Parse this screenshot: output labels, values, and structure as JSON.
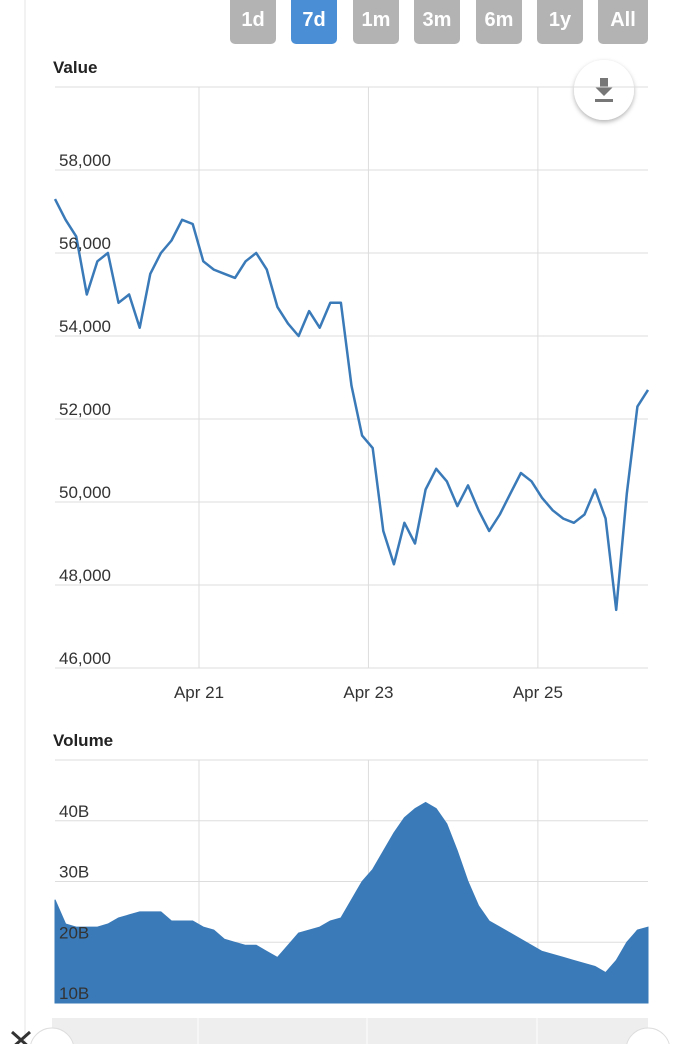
{
  "range_buttons": [
    "1d",
    "7d",
    "1m",
    "3m",
    "6m",
    "1y",
    "All"
  ],
  "selected_range": "7d",
  "chart_data": [
    {
      "type": "line",
      "title": "Value",
      "color": "#3a7ab8",
      "grid": true,
      "x": [
        19.3,
        19.425,
        19.55,
        19.675,
        19.8,
        19.925,
        20.05,
        20.175,
        20.3,
        20.425,
        20.55,
        20.675,
        20.8,
        20.925,
        21.05,
        21.175,
        21.3,
        21.425,
        21.55,
        21.675,
        21.8,
        21.925,
        22.05,
        22.175,
        22.3,
        22.425,
        22.55,
        22.675,
        22.8,
        22.925,
        23.05,
        23.175,
        23.3,
        23.425,
        23.55,
        23.675,
        23.8,
        23.925,
        24.05,
        24.175,
        24.3,
        24.425,
        24.55,
        24.675,
        24.8,
        24.925,
        25.05,
        25.175,
        25.3,
        25.425,
        25.55,
        25.675,
        25.8,
        25.925,
        26.05,
        26.175,
        26.3
      ],
      "values": [
        57300,
        56800,
        56400,
        55000,
        55800,
        56000,
        54800,
        55000,
        54200,
        55500,
        56000,
        56300,
        56800,
        56700,
        55800,
        55600,
        55500,
        55400,
        55800,
        56000,
        55600,
        54700,
        54300,
        54000,
        54600,
        54200,
        54800,
        54800,
        52800,
        51600,
        51300,
        49300,
        48500,
        49500,
        49000,
        50300,
        50800,
        50500,
        49900,
        50400,
        49800,
        49300,
        49700,
        50200,
        50700,
        50500,
        50100,
        49800,
        49600,
        49500,
        49700,
        50300,
        49600,
        47400,
        50200,
        52300,
        52700
      ],
      "xlim": [
        19.3,
        26.3
      ],
      "xticks": [
        {
          "value": 21,
          "label": "Apr 21"
        },
        {
          "value": 23,
          "label": "Apr 23"
        },
        {
          "value": 25,
          "label": "Apr 25"
        }
      ],
      "ylim": [
        46000,
        60000
      ],
      "yticks": [
        {
          "value": 46000,
          "label": "46,000"
        },
        {
          "value": 48000,
          "label": "48,000"
        },
        {
          "value": 50000,
          "label": "50,000"
        },
        {
          "value": 52000,
          "label": "52,000"
        },
        {
          "value": 54000,
          "label": "54,000"
        },
        {
          "value": 56000,
          "label": "56,000"
        },
        {
          "value": 58000,
          "label": "58,000"
        }
      ]
    },
    {
      "type": "area",
      "title": "Volume",
      "color": "#3a7ab8",
      "grid": true,
      "x": [
        19.3,
        19.425,
        19.55,
        19.675,
        19.8,
        19.925,
        20.05,
        20.175,
        20.3,
        20.425,
        20.55,
        20.675,
        20.8,
        20.925,
        21.05,
        21.175,
        21.3,
        21.425,
        21.55,
        21.675,
        21.8,
        21.925,
        22.05,
        22.175,
        22.3,
        22.425,
        22.55,
        22.675,
        22.8,
        22.925,
        23.05,
        23.175,
        23.3,
        23.425,
        23.55,
        23.675,
        23.8,
        23.925,
        24.05,
        24.175,
        24.3,
        24.425,
        24.55,
        24.675,
        24.8,
        24.925,
        25.05,
        25.175,
        25.3,
        25.425,
        25.55,
        25.675,
        25.8,
        25.925,
        26.05,
        26.175,
        26.3
      ],
      "values": [
        27,
        23,
        22.5,
        22.5,
        22.5,
        23,
        24,
        24.5,
        25,
        25,
        25,
        23.5,
        23.5,
        23.5,
        22.5,
        22,
        20.5,
        20,
        19.5,
        19.5,
        18.5,
        17.5,
        19.5,
        21.5,
        22,
        22.5,
        23.5,
        24,
        27,
        30,
        32,
        35,
        38,
        40.5,
        42,
        43,
        42,
        39.5,
        35,
        30,
        26,
        23.5,
        22.5,
        21.5,
        20.5,
        19.5,
        18.5,
        18,
        17.5,
        17,
        16.5,
        16,
        15,
        17,
        20,
        22,
        22.5
      ],
      "xlim": [
        19.3,
        26.3
      ],
      "xticks": [
        21,
        23,
        25
      ],
      "ylim": [
        10,
        50
      ],
      "yticks": [
        {
          "value": 10,
          "label": "10B"
        },
        {
          "value": 20,
          "label": "20B"
        },
        {
          "value": 30,
          "label": "30B"
        },
        {
          "value": 40,
          "label": "40B"
        }
      ]
    }
  ]
}
